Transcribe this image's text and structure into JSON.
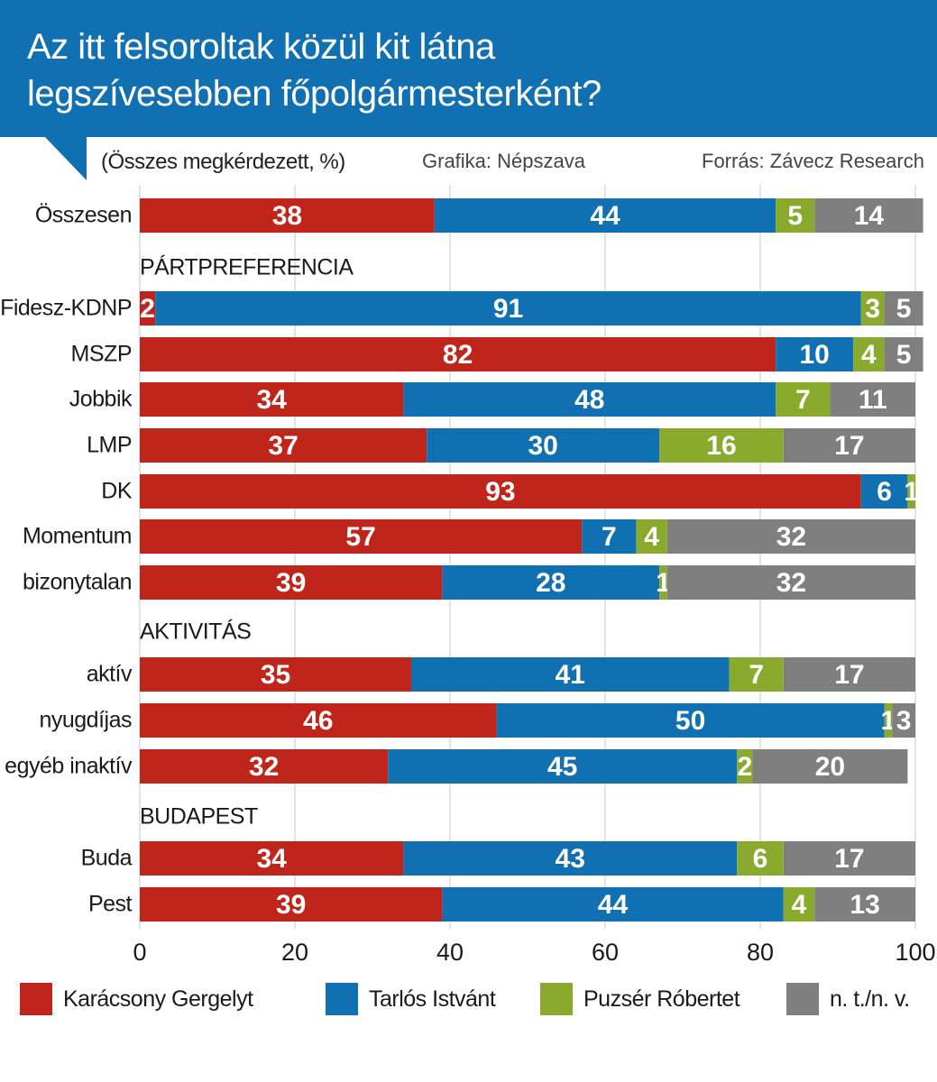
{
  "header": {
    "title_line1": "Az itt felsoroltak közül kit látna",
    "title_line2": "legszívesebben főpolgármesterként?",
    "subtitle": "(Összes megkérdezett, %)",
    "credit": "Grafika: Népszava",
    "source": "Forrás: Závecz Research"
  },
  "colors": {
    "header_bg": "#1170b2",
    "karacsony": "#c0251b",
    "tarlos": "#1170b2",
    "puzser": "#8aaa2e",
    "nt_nv": "#7f7f7f"
  },
  "chart_data": {
    "type": "bar",
    "orientation": "horizontal",
    "stacked": true,
    "title": "Az itt felsoroltak közül kit látna legszívesebben főpolgármesterként?",
    "subtitle": "(Összes megkérdezett, %)",
    "xlabel": "",
    "ylabel": "",
    "xlim": [
      0,
      100
    ],
    "xticks": [
      0,
      20,
      40,
      60,
      80,
      100
    ],
    "grid": true,
    "legend_position": "bottom",
    "series_names": [
      "Karácsony Gergelyt",
      "Tarlós Istvánt",
      "Puzsér Róbertet",
      "n. t./n. v."
    ],
    "groups": [
      {
        "heading": "",
        "rows": [
          {
            "label": "Összesen",
            "values": [
              38,
              44,
              5,
              14
            ]
          }
        ]
      },
      {
        "heading": "PÁRTPREFERENCIA",
        "rows": [
          {
            "label": "Fidesz-KDNP",
            "values": [
              2,
              91,
              3,
              5
            ]
          },
          {
            "label": "MSZP",
            "values": [
              82,
              10,
              4,
              5
            ]
          },
          {
            "label": "Jobbik",
            "values": [
              34,
              48,
              7,
              11
            ]
          },
          {
            "label": "LMP",
            "values": [
              37,
              30,
              16,
              17
            ]
          },
          {
            "label": "DK",
            "values": [
              93,
              6,
              1,
              0
            ]
          },
          {
            "label": "Momentum",
            "values": [
              57,
              7,
              4,
              32
            ]
          },
          {
            "label": "bizonytalan",
            "values": [
              39,
              28,
              1,
              32
            ]
          }
        ]
      },
      {
        "heading": "AKTIVITÁS",
        "rows": [
          {
            "label": "aktív",
            "values": [
              35,
              41,
              7,
              17
            ]
          },
          {
            "label": "nyugdíjas",
            "values": [
              46,
              50,
              1,
              3
            ]
          },
          {
            "label": "egyéb inaktív",
            "values": [
              32,
              45,
              2,
              20
            ]
          }
        ]
      },
      {
        "heading": "BUDAPEST",
        "rows": [
          {
            "label": "Buda",
            "values": [
              34,
              43,
              6,
              17
            ]
          },
          {
            "label": "Pest",
            "values": [
              39,
              44,
              4,
              13
            ]
          }
        ]
      }
    ],
    "value_labels": {
      "Fidesz-KDNP": [
        "2",
        "91",
        "3",
        "5"
      ],
      "DK": [
        "93",
        "6",
        "1",
        ""
      ],
      "nyugdíjas": [
        "46",
        "50",
        "1",
        "3"
      ]
    }
  },
  "legend": [
    {
      "label": "Karácsony Gergelyt",
      "color": "#c0251b"
    },
    {
      "label": "Tarlós Istvánt",
      "color": "#1170b2"
    },
    {
      "label": "Puzsér Róbertet",
      "color": "#8aaa2e"
    },
    {
      "label": "n. t./n. v.",
      "color": "#7f7f7f"
    }
  ]
}
